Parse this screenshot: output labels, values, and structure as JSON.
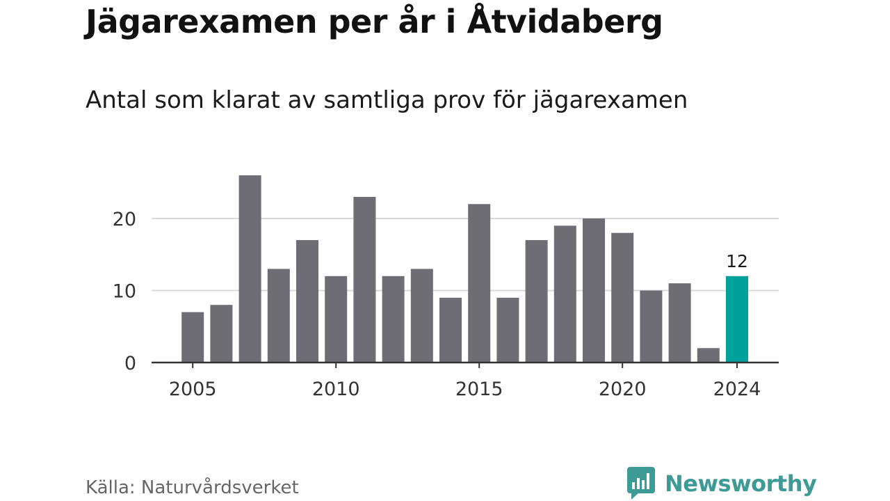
{
  "title": "Jägarexamen per år i Åtvidaberg",
  "subtitle": "Antal som klarat av samtliga prov för jägarexamen",
  "source": "Källa: Naturvårdsverket",
  "brand": {
    "name": "Newsworthy",
    "icon": "bar-chart-speech-bubble-icon",
    "color": "#3e9a95"
  },
  "colors": {
    "bar": "#6e6d73",
    "highlight": "#00a19a",
    "grid": "#d9d9d9",
    "axis": "#333333"
  },
  "chart_data": {
    "type": "bar",
    "categories": [
      2004,
      2005,
      2006,
      2007,
      2008,
      2009,
      2010,
      2011,
      2012,
      2013,
      2014,
      2015,
      2016,
      2017,
      2018,
      2019,
      2020,
      2021,
      2022,
      2023,
      2024
    ],
    "values": [
      null,
      7,
      8,
      26,
      13,
      17,
      12,
      23,
      12,
      13,
      9,
      22,
      9,
      17,
      19,
      20,
      18,
      10,
      11,
      2,
      12
    ],
    "highlight_category": 2024,
    "highlight_label": "12",
    "x_ticks": [
      2005,
      2010,
      2015,
      2020,
      2024
    ],
    "y_ticks": [
      0,
      10,
      20
    ],
    "ylim": [
      0,
      30
    ],
    "grid": true,
    "legend": "none"
  }
}
